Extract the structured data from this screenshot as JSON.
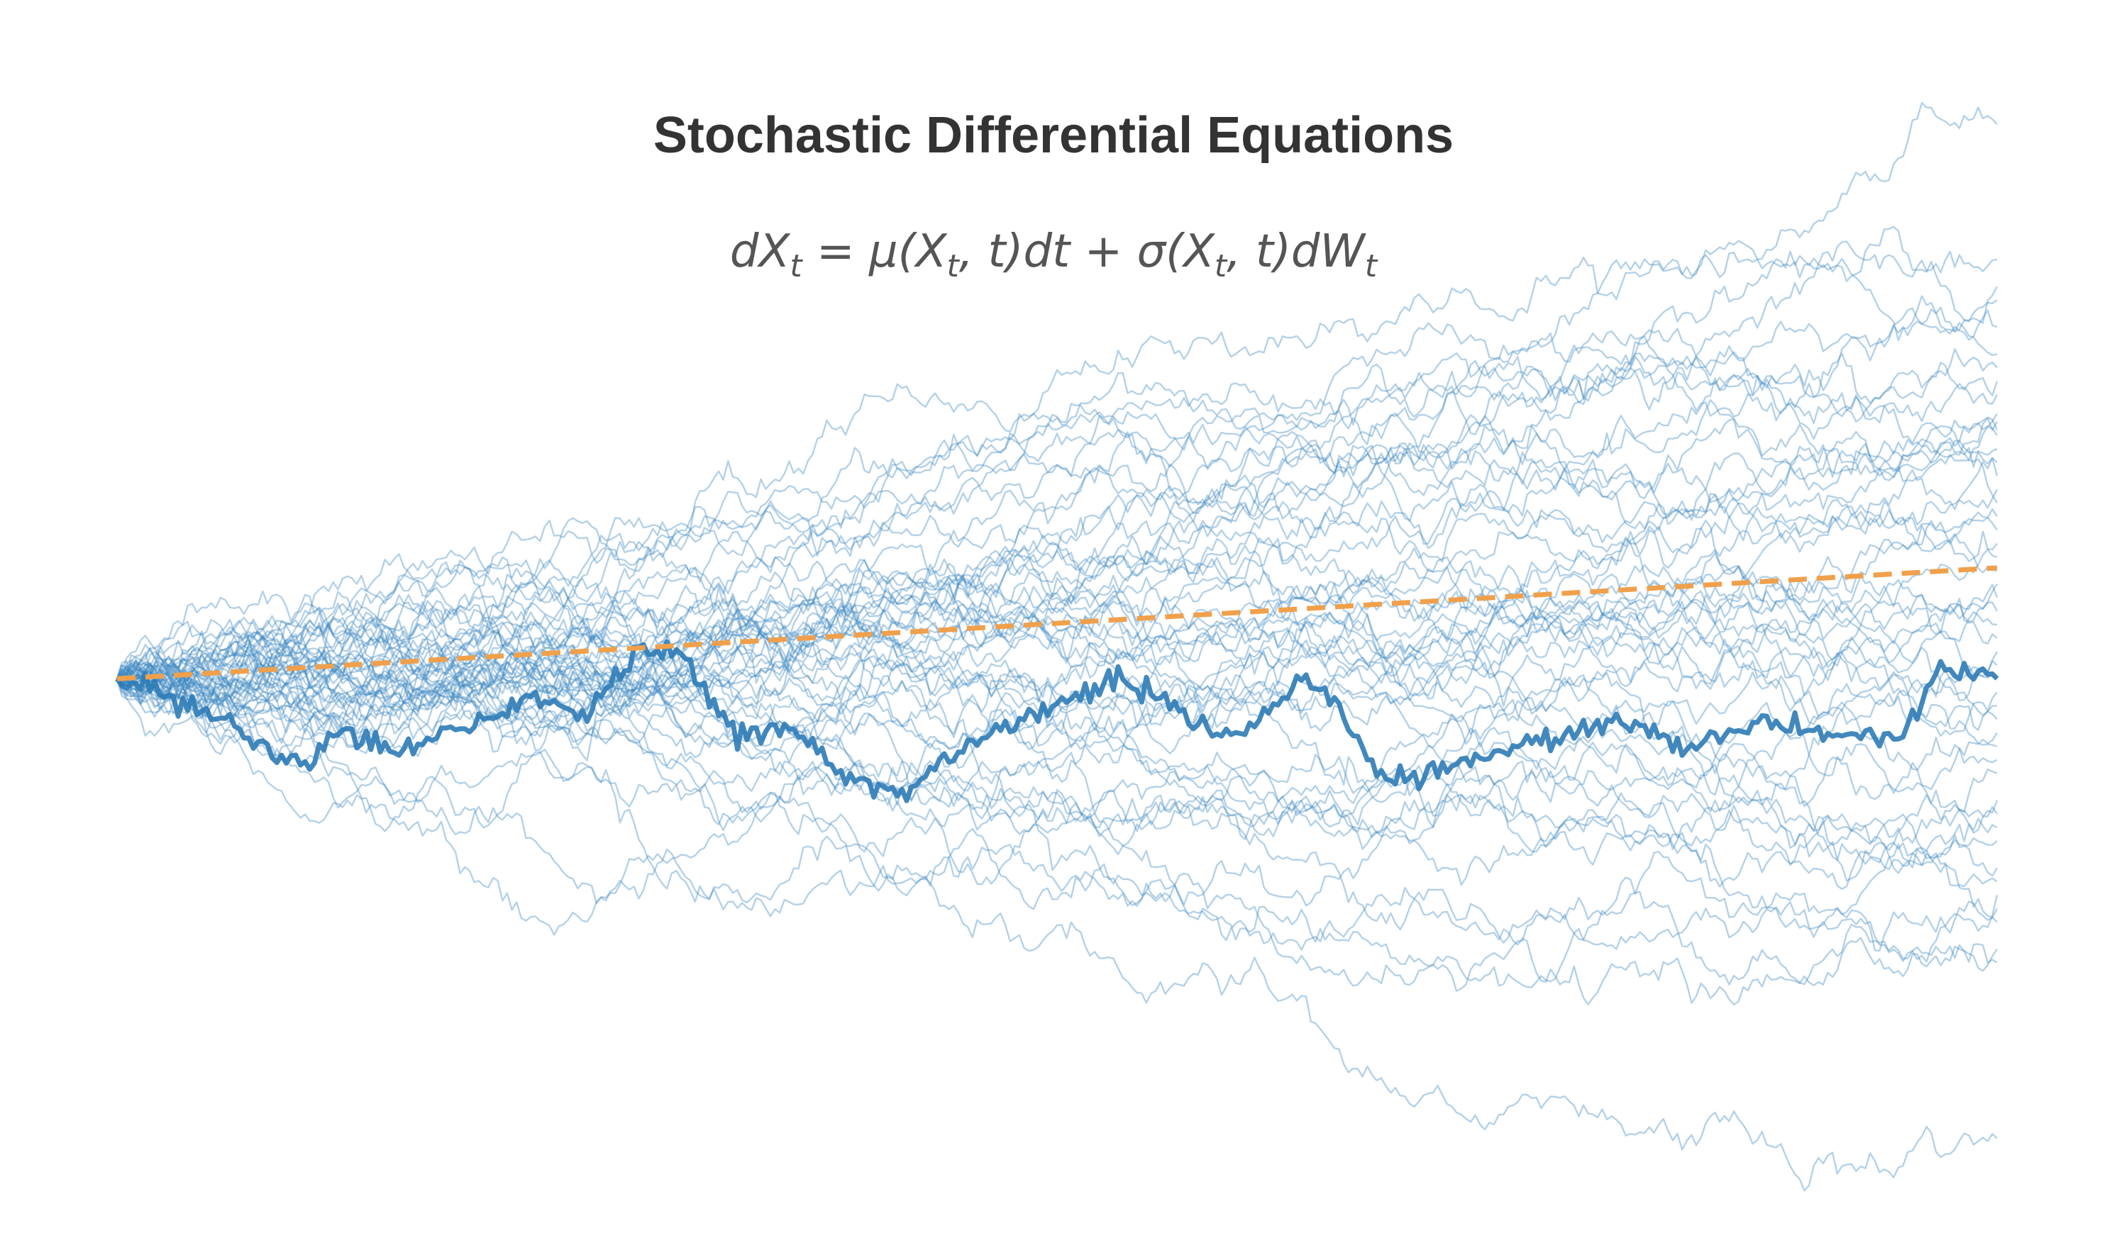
{
  "chart_data": {
    "type": "line",
    "title": "Stochastic Differential Equations",
    "equation": {
      "parts": [
        "dX",
        "t",
        " = μ(X",
        "t",
        ", t)dt + σ(X",
        "t",
        ", t)dW",
        "t"
      ],
      "plain": "dX_t = μ(X_t, t)dt + σ(X_t, t)dW_t"
    },
    "xlabel": "",
    "ylabel": "",
    "axes_visible": false,
    "grid": false,
    "xlim": [
      0,
      1
    ],
    "ylim": [
      -2.0,
      2.3
    ],
    "x0": 0,
    "x_end": 1,
    "initial_value": 0,
    "n_steps": 400,
    "n_paths": 50,
    "path_end_values": [
      2.05,
      1.55,
      1.45,
      1.4,
      1.2,
      1.15,
      1.1,
      1.05,
      0.95,
      0.92,
      0.9,
      0.85,
      0.8,
      0.75,
      0.7,
      0.65,
      0.6,
      0.55,
      0.5,
      0.45,
      0.4,
      0.35,
      0.3,
      0.25,
      0.2,
      0.15,
      0.1,
      0.05,
      0.0,
      -0.05,
      -0.1,
      -0.15,
      -0.2,
      -0.25,
      -0.3,
      -0.35,
      -0.45,
      -0.5,
      -0.55,
      -0.6,
      -0.7,
      -0.8,
      -0.85,
      -0.9,
      -1.0,
      -1.05,
      -0.75,
      -1.7,
      0.98,
      1.3
    ],
    "highlight_path": {
      "checkpoints_x": [
        0,
        0.05,
        0.09,
        0.1,
        0.12,
        0.15,
        0.2,
        0.22,
        0.25,
        0.28,
        0.3,
        0.33,
        0.36,
        0.39,
        0.42,
        0.45,
        0.48,
        0.5,
        0.53,
        0.56,
        0.58,
        0.6,
        0.63,
        0.65,
        0.67,
        0.69,
        0.72,
        0.74,
        0.78,
        0.8,
        0.83,
        0.86,
        0.88,
        0.92,
        0.95,
        0.97,
        1.0
      ],
      "checkpoints_y": [
        0,
        -0.12,
        -0.3,
        -0.32,
        -0.2,
        -0.25,
        -0.15,
        -0.08,
        -0.12,
        0.12,
        0.08,
        -0.2,
        -0.2,
        -0.38,
        -0.42,
        -0.25,
        -0.15,
        -0.1,
        0.0,
        -0.1,
        -0.2,
        -0.2,
        0.0,
        -0.1,
        -0.35,
        -0.38,
        -0.3,
        -0.25,
        -0.2,
        -0.15,
        -0.25,
        -0.2,
        -0.15,
        -0.22,
        -0.2,
        0.05,
        0.0
      ]
    },
    "mean_line": {
      "start": 0,
      "end": 0.41,
      "style": "dashed"
    },
    "colors": {
      "paths": "#3b86c0",
      "highlight": "#2e7bb6",
      "mean": "#f0a04b",
      "title": "#333333",
      "equation": "#555555"
    }
  }
}
